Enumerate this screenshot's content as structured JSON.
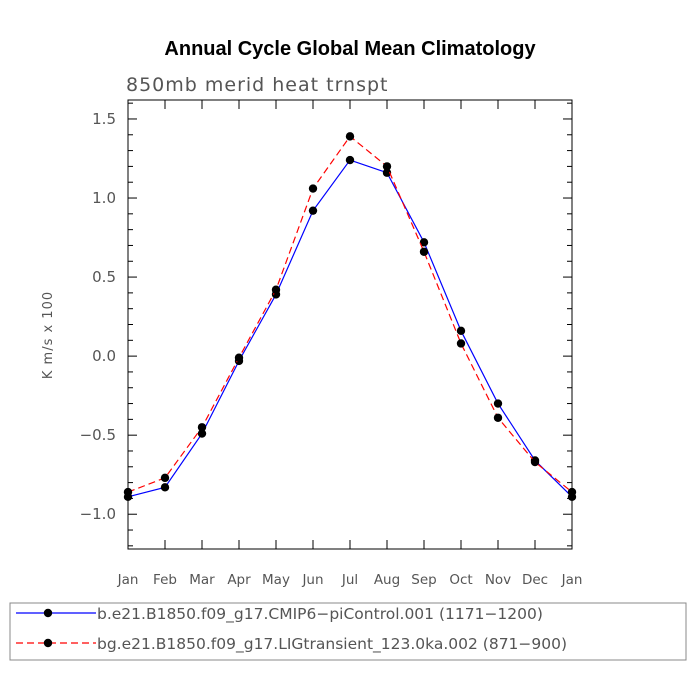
{
  "chart_data": {
    "type": "line",
    "title": "Annual Cycle Global Mean Climatology",
    "subtitle": "850mb merid heat trnspt",
    "ylabel": "K m/s x 100",
    "xlabel": "",
    "categories": [
      "Jan",
      "Feb",
      "Mar",
      "Apr",
      "May",
      "Jun",
      "Jul",
      "Aug",
      "Sep",
      "Oct",
      "Nov",
      "Dec",
      "Jan"
    ],
    "ylim": [
      -1.22,
      1.62
    ],
    "yticks": [
      -1.0,
      -0.5,
      0.0,
      0.5,
      1.0,
      1.5
    ],
    "ytick_labels": [
      "−1.0",
      "−0.5",
      "0.0",
      "0.5",
      "1.0",
      "1.5"
    ],
    "grid": false,
    "legend_position": "bottom",
    "series": [
      {
        "name": "b.e21.B1850.f09_g17.CMIP6−piControl.001 (1171−1200)",
        "color": "#0000ff",
        "dash": "solid",
        "values": [
          -0.89,
          -0.83,
          -0.49,
          -0.03,
          0.39,
          0.92,
          1.24,
          1.16,
          0.72,
          0.16,
          -0.3,
          -0.66,
          -0.89
        ]
      },
      {
        "name": "bg.e21.B1850.f09_g17.LIGtransient_123.0ka.002 (871−900)",
        "color": "#ff0000",
        "dash": "dashed",
        "values": [
          -0.86,
          -0.77,
          -0.45,
          -0.01,
          0.42,
          1.06,
          1.39,
          1.2,
          0.66,
          0.08,
          -0.39,
          -0.67,
          -0.86
        ]
      }
    ]
  }
}
